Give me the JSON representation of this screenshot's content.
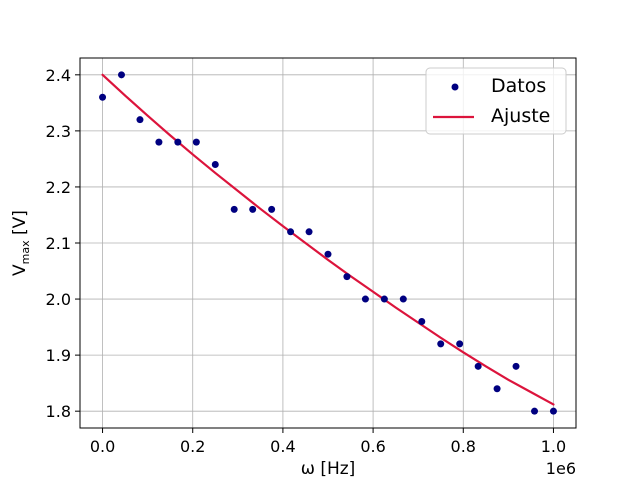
{
  "chart_data": {
    "type": "scatter",
    "title": "",
    "xlabel": "ω [Hz]",
    "ylabel_main": "V",
    "ylabel_sub": "max",
    "ylabel_unit": " [V]",
    "x_offset_text": "1e6",
    "xlim": [
      -0.05,
      1.05
    ],
    "ylim": [
      1.77,
      2.43
    ],
    "x_ticks": [
      0.0,
      0.2,
      0.4,
      0.6,
      0.8,
      1.0
    ],
    "x_tick_labels": [
      "0.0",
      "0.2",
      "0.4",
      "0.6",
      "0.8",
      "1.0"
    ],
    "y_ticks": [
      1.8,
      1.9,
      2.0,
      2.1,
      2.2,
      2.3,
      2.4
    ],
    "y_tick_labels": [
      "1.8",
      "1.9",
      "2.0",
      "2.1",
      "2.2",
      "2.3",
      "2.4"
    ],
    "grid": true,
    "legend_position": "top-right",
    "series": [
      {
        "name": "Datos",
        "kind": "scatter",
        "color": "#000080",
        "x": [
          0.0,
          0.042,
          0.083,
          0.125,
          0.167,
          0.208,
          0.25,
          0.292,
          0.333,
          0.375,
          0.417,
          0.458,
          0.5,
          0.542,
          0.583,
          0.625,
          0.667,
          0.708,
          0.75,
          0.792,
          0.833,
          0.875,
          0.917,
          0.958,
          1.0
        ],
        "y": [
          2.36,
          2.4,
          2.32,
          2.28,
          2.28,
          2.28,
          2.24,
          2.16,
          2.16,
          2.16,
          2.12,
          2.12,
          2.08,
          2.04,
          2.0,
          2.0,
          2.0,
          1.96,
          1.92,
          1.92,
          1.88,
          1.84,
          1.88,
          1.8,
          1.8
        ]
      },
      {
        "name": "Ajuste",
        "kind": "line",
        "color": "#DC143C",
        "x": [
          0.0,
          0.05,
          0.1,
          0.15,
          0.2,
          0.25,
          0.3,
          0.35,
          0.4,
          0.45,
          0.5,
          0.55,
          0.6,
          0.65,
          0.7,
          0.75,
          0.8,
          0.85,
          0.9,
          0.95,
          1.0
        ],
        "y": [
          2.4,
          2.363,
          2.327,
          2.292,
          2.258,
          2.225,
          2.193,
          2.161,
          2.13,
          2.1,
          2.07,
          2.041,
          2.013,
          1.985,
          1.958,
          1.931,
          1.905,
          1.88,
          1.856,
          1.834,
          1.812
        ]
      }
    ]
  }
}
